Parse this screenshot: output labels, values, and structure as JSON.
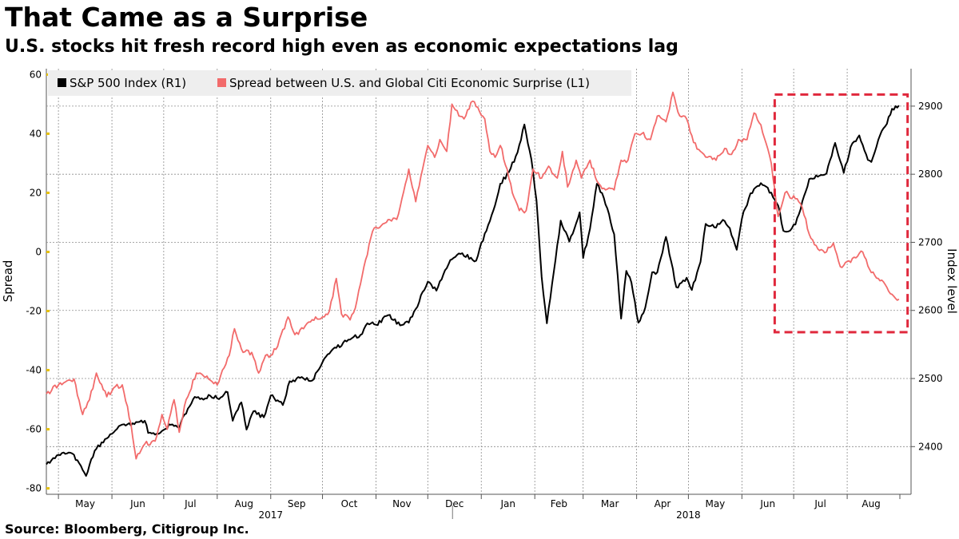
{
  "header": {
    "title": "That Came as a Surprise",
    "subtitle": "U.S. stocks hit fresh record high even as economic expectations lag"
  },
  "footer": {
    "source": "Source: Bloomberg, Citigroup Inc."
  },
  "colors": {
    "sp500": "#000000",
    "spread": "#f26b6b",
    "highlight_box": "#e0283c",
    "left_tick_marker": "#e6c000",
    "grid": "#8c8c8c",
    "legend_bg": "#eeeeee"
  },
  "chart_data": {
    "type": "line",
    "x_axis": {
      "months": [
        {
          "label": "May",
          "date": "2017-05-01"
        },
        {
          "label": "Jun",
          "date": "2017-06-01"
        },
        {
          "label": "Jul",
          "date": "2017-07-01"
        },
        {
          "label": "Aug",
          "date": "2017-08-01"
        },
        {
          "label": "Sep",
          "date": "2017-09-01"
        },
        {
          "label": "Oct",
          "date": "2017-10-01"
        },
        {
          "label": "Nov",
          "date": "2017-11-01"
        },
        {
          "label": "Dec",
          "date": "2017-12-01"
        },
        {
          "label": "Jan",
          "date": "2018-01-01"
        },
        {
          "label": "Feb",
          "date": "2018-02-01"
        },
        {
          "label": "Mar",
          "date": "2018-03-01"
        },
        {
          "label": "Apr",
          "date": "2018-04-01"
        },
        {
          "label": "May",
          "date": "2018-05-01"
        },
        {
          "label": "Jun",
          "date": "2018-06-01"
        },
        {
          "label": "Jul",
          "date": "2018-07-01"
        },
        {
          "label": "Aug",
          "date": "2018-08-01"
        }
      ],
      "years": [
        {
          "label": "2017",
          "date": "2017-09-01"
        },
        {
          "label": "2018",
          "date": "2018-05-01"
        }
      ],
      "range": [
        "2017-04-24",
        "2018-09-07"
      ]
    },
    "y_left": {
      "label": "Spread",
      "ticks": [
        60,
        40,
        20,
        0,
        -20,
        -40,
        -60,
        -80
      ],
      "range": [
        -82,
        62
      ]
    },
    "y_right": {
      "label": "Index level",
      "ticks": [
        2900,
        2800,
        2700,
        2600,
        2500,
        2400
      ],
      "range": [
        2330,
        2955
      ]
    },
    "legend": {
      "placement": "top-left",
      "entries": [
        {
          "label": "S&P 500 Index (R1)",
          "color": "#000000"
        },
        {
          "label": "Spread between U.S. and Global Citi Economic Surprise (L1)",
          "color": "#f26b6b"
        }
      ]
    },
    "grid": true,
    "highlight": {
      "x_range": [
        "2018-06-20",
        "2018-09-05"
      ],
      "y_right_range": [
        2568,
        2917
      ]
    },
    "series": [
      {
        "name": "S&P 500 Index (R1)",
        "axis": "right",
        "color": "#000000",
        "points": [
          [
            "2017-04-24",
            2374
          ],
          [
            "2017-05-01",
            2388
          ],
          [
            "2017-05-08",
            2391
          ],
          [
            "2017-05-12",
            2380
          ],
          [
            "2017-05-17",
            2357
          ],
          [
            "2017-05-22",
            2394
          ],
          [
            "2017-05-29",
            2412
          ],
          [
            "2017-06-05",
            2430
          ],
          [
            "2017-06-09",
            2431
          ],
          [
            "2017-06-14",
            2433
          ],
          [
            "2017-06-20",
            2438
          ],
          [
            "2017-06-22",
            2420
          ],
          [
            "2017-06-27",
            2419
          ],
          [
            "2017-06-30",
            2423
          ],
          [
            "2017-07-05",
            2432
          ],
          [
            "2017-07-10",
            2427
          ],
          [
            "2017-07-13",
            2447
          ],
          [
            "2017-07-19",
            2473
          ],
          [
            "2017-07-24",
            2469
          ],
          [
            "2017-07-27",
            2476
          ],
          [
            "2017-08-01",
            2471
          ],
          [
            "2017-08-07",
            2480
          ],
          [
            "2017-08-10",
            2438
          ],
          [
            "2017-08-15",
            2465
          ],
          [
            "2017-08-18",
            2425
          ],
          [
            "2017-08-22",
            2452
          ],
          [
            "2017-08-28",
            2443
          ],
          [
            "2017-09-01",
            2475
          ],
          [
            "2017-09-06",
            2466
          ],
          [
            "2017-09-08",
            2461
          ],
          [
            "2017-09-12",
            2496
          ],
          [
            "2017-09-18",
            2501
          ],
          [
            "2017-09-25",
            2497
          ],
          [
            "2017-10-02",
            2529
          ],
          [
            "2017-10-09",
            2545
          ],
          [
            "2017-10-16",
            2557
          ],
          [
            "2017-10-23",
            2564
          ],
          [
            "2017-10-27",
            2581
          ],
          [
            "2017-11-01",
            2579
          ],
          [
            "2017-11-08",
            2593
          ],
          [
            "2017-11-15",
            2578
          ],
          [
            "2017-11-20",
            2582
          ],
          [
            "2017-11-24",
            2602
          ],
          [
            "2017-11-28",
            2627
          ],
          [
            "2017-12-01",
            2642
          ],
          [
            "2017-12-06",
            2629
          ],
          [
            "2017-12-11",
            2659
          ],
          [
            "2017-12-15",
            2675
          ],
          [
            "2017-12-21",
            2684
          ],
          [
            "2017-12-29",
            2673
          ],
          [
            "2018-01-03",
            2713
          ],
          [
            "2018-01-08",
            2747
          ],
          [
            "2018-01-12",
            2786
          ],
          [
            "2018-01-17",
            2803
          ],
          [
            "2018-01-22",
            2832
          ],
          [
            "2018-01-26",
            2873
          ],
          [
            "2018-01-30",
            2822
          ],
          [
            "2018-02-02",
            2762
          ],
          [
            "2018-02-05",
            2649
          ],
          [
            "2018-02-08",
            2581
          ],
          [
            "2018-02-12",
            2656
          ],
          [
            "2018-02-16",
            2732
          ],
          [
            "2018-02-21",
            2701
          ],
          [
            "2018-02-27",
            2744
          ],
          [
            "2018-03-01",
            2677
          ],
          [
            "2018-03-05",
            2720
          ],
          [
            "2018-03-09",
            2786
          ],
          [
            "2018-03-13",
            2765
          ],
          [
            "2018-03-19",
            2712
          ],
          [
            "2018-03-23",
            2588
          ],
          [
            "2018-03-26",
            2658
          ],
          [
            "2018-03-29",
            2641
          ],
          [
            "2018-04-02",
            2582
          ],
          [
            "2018-04-06",
            2604
          ],
          [
            "2018-04-10",
            2656
          ],
          [
            "2018-04-13",
            2656
          ],
          [
            "2018-04-18",
            2708
          ],
          [
            "2018-04-24",
            2634
          ],
          [
            "2018-04-30",
            2648
          ],
          [
            "2018-05-03",
            2630
          ],
          [
            "2018-05-08",
            2671
          ],
          [
            "2018-05-11",
            2727
          ],
          [
            "2018-05-16",
            2722
          ],
          [
            "2018-05-21",
            2733
          ],
          [
            "2018-05-25",
            2721
          ],
          [
            "2018-05-29",
            2689
          ],
          [
            "2018-06-01",
            2735
          ],
          [
            "2018-06-06",
            2772
          ],
          [
            "2018-06-12",
            2787
          ],
          [
            "2018-06-18",
            2773
          ],
          [
            "2018-06-22",
            2754
          ],
          [
            "2018-06-25",
            2717
          ],
          [
            "2018-06-28",
            2716
          ],
          [
            "2018-07-02",
            2726
          ],
          [
            "2018-07-06",
            2760
          ],
          [
            "2018-07-10",
            2793
          ],
          [
            "2018-07-16",
            2798
          ],
          [
            "2018-07-20",
            2801
          ],
          [
            "2018-07-25",
            2846
          ],
          [
            "2018-07-30",
            2802
          ],
          [
            "2018-08-03",
            2840
          ],
          [
            "2018-08-08",
            2857
          ],
          [
            "2018-08-13",
            2821
          ],
          [
            "2018-08-15",
            2818
          ],
          [
            "2018-08-20",
            2857
          ],
          [
            "2018-08-24",
            2874
          ],
          [
            "2018-08-27",
            2896
          ],
          [
            "2018-08-31",
            2901
          ]
        ]
      },
      {
        "name": "Spread between U.S. and Global Citi Economic Surprise (L1)",
        "axis": "left",
        "color": "#f26b6b",
        "points": [
          [
            "2017-04-24",
            -48
          ],
          [
            "2017-05-01",
            -45
          ],
          [
            "2017-05-05",
            -44
          ],
          [
            "2017-05-10",
            -43
          ],
          [
            "2017-05-15",
            -55
          ],
          [
            "2017-05-19",
            -50
          ],
          [
            "2017-05-23",
            -41
          ],
          [
            "2017-05-29",
            -49
          ],
          [
            "2017-06-02",
            -46
          ],
          [
            "2017-06-07",
            -45
          ],
          [
            "2017-06-12",
            -58
          ],
          [
            "2017-06-15",
            -70
          ],
          [
            "2017-06-20",
            -65
          ],
          [
            "2017-06-26",
            -64
          ],
          [
            "2017-06-30",
            -55
          ],
          [
            "2017-07-03",
            -60
          ],
          [
            "2017-07-07",
            -50
          ],
          [
            "2017-07-10",
            -61
          ],
          [
            "2017-07-14",
            -50
          ],
          [
            "2017-07-20",
            -41
          ],
          [
            "2017-07-26",
            -42
          ],
          [
            "2017-08-01",
            -45
          ],
          [
            "2017-08-04",
            -40
          ],
          [
            "2017-08-08",
            -35
          ],
          [
            "2017-08-11",
            -26
          ],
          [
            "2017-08-16",
            -34
          ],
          [
            "2017-08-21",
            -34
          ],
          [
            "2017-08-25",
            -41
          ],
          [
            "2017-08-29",
            -35
          ],
          [
            "2017-09-01",
            -35
          ],
          [
            "2017-09-05",
            -32
          ],
          [
            "2017-09-11",
            -22
          ],
          [
            "2017-09-15",
            -28
          ],
          [
            "2017-09-20",
            -26
          ],
          [
            "2017-09-27",
            -22
          ],
          [
            "2017-10-02",
            -22
          ],
          [
            "2017-10-05",
            -20
          ],
          [
            "2017-10-09",
            -9
          ],
          [
            "2017-10-12",
            -21
          ],
          [
            "2017-10-17",
            -23
          ],
          [
            "2017-10-20",
            -19
          ],
          [
            "2017-10-25",
            -5
          ],
          [
            "2017-10-30",
            7
          ],
          [
            "2017-11-02",
            8
          ],
          [
            "2017-11-07",
            10
          ],
          [
            "2017-11-13",
            11
          ],
          [
            "2017-11-16",
            18
          ],
          [
            "2017-11-20",
            28
          ],
          [
            "2017-11-24",
            17
          ],
          [
            "2017-11-28",
            28
          ],
          [
            "2017-12-01",
            36
          ],
          [
            "2017-12-05",
            32
          ],
          [
            "2017-12-08",
            38
          ],
          [
            "2017-12-12",
            34
          ],
          [
            "2017-12-15",
            50
          ],
          [
            "2017-12-19",
            46
          ],
          [
            "2017-12-22",
            45
          ],
          [
            "2017-12-27",
            51
          ],
          [
            "2018-01-03",
            45
          ],
          [
            "2018-01-06",
            34
          ],
          [
            "2018-01-09",
            32
          ],
          [
            "2018-01-12",
            36
          ],
          [
            "2018-01-16",
            28
          ],
          [
            "2018-01-19",
            20
          ],
          [
            "2018-01-23",
            14
          ],
          [
            "2018-01-27",
            14
          ],
          [
            "2018-01-31",
            28
          ],
          [
            "2018-02-05",
            25
          ],
          [
            "2018-02-09",
            29
          ],
          [
            "2018-02-14",
            25
          ],
          [
            "2018-02-17",
            34
          ],
          [
            "2018-02-20",
            22
          ],
          [
            "2018-02-25",
            31
          ],
          [
            "2018-02-28",
            25
          ],
          [
            "2018-03-05",
            31
          ],
          [
            "2018-03-09",
            24
          ],
          [
            "2018-03-14",
            21
          ],
          [
            "2018-03-19",
            21
          ],
          [
            "2018-03-23",
            31
          ],
          [
            "2018-03-27",
            31
          ],
          [
            "2018-03-31",
            40
          ],
          [
            "2018-04-04",
            40
          ],
          [
            "2018-04-09",
            38
          ],
          [
            "2018-04-13",
            46
          ],
          [
            "2018-04-18",
            44
          ],
          [
            "2018-04-22",
            54
          ],
          [
            "2018-04-26",
            46
          ],
          [
            "2018-04-30",
            45
          ],
          [
            "2018-05-04",
            37
          ],
          [
            "2018-05-08",
            34
          ],
          [
            "2018-05-12",
            32
          ],
          [
            "2018-05-17",
            31
          ],
          [
            "2018-05-22",
            35
          ],
          [
            "2018-05-26",
            33
          ],
          [
            "2018-05-30",
            38
          ],
          [
            "2018-06-04",
            38
          ],
          [
            "2018-06-08",
            47
          ],
          [
            "2018-06-12",
            43
          ],
          [
            "2018-06-18",
            30
          ],
          [
            "2018-06-22",
            12
          ],
          [
            "2018-06-26",
            20
          ],
          [
            "2018-07-02",
            18
          ],
          [
            "2018-07-06",
            15
          ],
          [
            "2018-07-10",
            6
          ],
          [
            "2018-07-15",
            1
          ],
          [
            "2018-07-20",
            0
          ],
          [
            "2018-07-24",
            3
          ],
          [
            "2018-07-28",
            -5
          ],
          [
            "2018-08-02",
            -3
          ],
          [
            "2018-08-06",
            -2
          ],
          [
            "2018-08-10",
            0
          ],
          [
            "2018-08-15",
            -7
          ],
          [
            "2018-08-19",
            -9
          ],
          [
            "2018-08-23",
            -11
          ],
          [
            "2018-08-28",
            -15
          ],
          [
            "2018-08-31",
            -16
          ]
        ]
      }
    ]
  }
}
